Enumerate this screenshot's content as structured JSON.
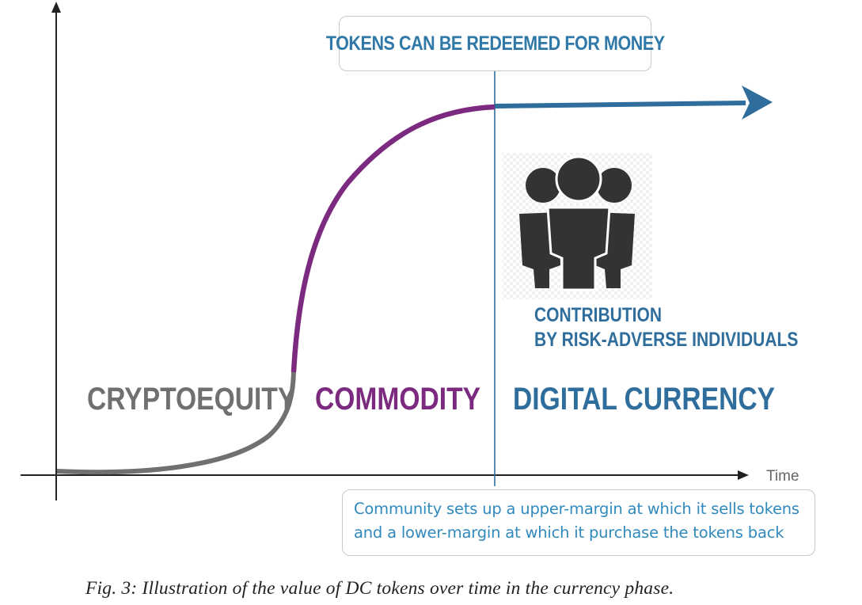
{
  "top_box": {
    "text": "TOKENS CAN BE REDEEMED FOR MONEY"
  },
  "phases": {
    "cryptoequity": "CRYPTOEQUITY",
    "commodity": "COMMODITY",
    "digital_currency": "DIGITAL CURRENCY"
  },
  "contribution": {
    "line1": "CONTRIBUTION",
    "line2": "BY RISK-ADVERSE INDIVIDUALS"
  },
  "axis": {
    "x_label": "Time"
  },
  "bottom_box": {
    "line1": "Community sets up a upper-margin at which it sells tokens",
    "line2": "and a lower-margin at which it purchase the tokens back"
  },
  "caption": "Fig. 3: Illustration of the value of DC tokens over time in the currency phase.",
  "colors": {
    "cryptoequity": "#707070",
    "commodity": "#7b2a80",
    "digital_currency": "#2f6e9c",
    "people_icon": "#333333"
  },
  "icons": [
    "group-of-people-icon",
    "arrow-right-icon"
  ]
}
